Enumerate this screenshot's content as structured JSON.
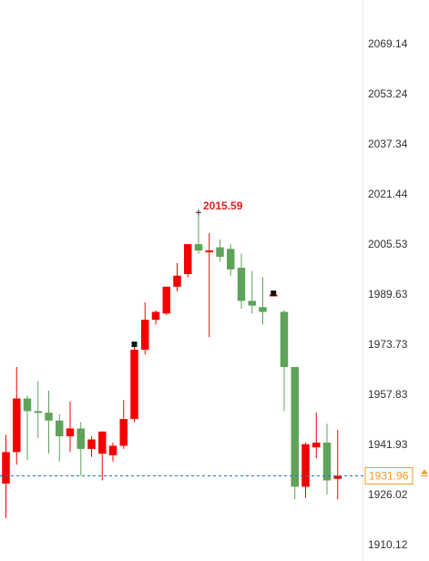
{
  "chart_data": {
    "type": "candlestick",
    "title": "",
    "xlabel": "",
    "ylabel": "",
    "ylim": [
      1907,
      2083
    ],
    "grid": false,
    "y_ticks": [
      "2069.14",
      "2053.24",
      "2037.34",
      "2021.44",
      "2005.53",
      "1989.63",
      "1973.73",
      "1957.83",
      "1941.93",
      "1926.02",
      "1910.12"
    ],
    "y_tick_values": [
      2069.14,
      2053.24,
      2037.34,
      2021.44,
      2005.53,
      1989.63,
      1973.73,
      1957.83,
      1941.93,
      1926.02,
      1910.12
    ],
    "current_price": "1931.96",
    "current_price_value": 1931.96,
    "high_marker": {
      "label": "2015.59",
      "value": 2015.59,
      "candle_index": 18
    },
    "colors": {
      "up": "#f40000",
      "down": "#5fa35a",
      "axis_text": "#333333",
      "high_label": "#e02020",
      "price_line": "#1e73c8",
      "price_tag": "#f29a1f"
    },
    "candles": [
      {
        "open": 1929.5,
        "high": 1945.0,
        "low": 1918.5,
        "close": 1939.5
      },
      {
        "open": 1939.5,
        "high": 1966.5,
        "low": 1935.5,
        "close": 1956.5
      },
      {
        "open": 1956.5,
        "high": 1957.5,
        "low": 1937.0,
        "close": 1952.5
      },
      {
        "open": 1952.5,
        "high": 1962.0,
        "low": 1944.0,
        "close": 1952.0
      },
      {
        "open": 1952.0,
        "high": 1959.0,
        "low": 1939.0,
        "close": 1949.5
      },
      {
        "open": 1949.5,
        "high": 1951.5,
        "low": 1936.5,
        "close": 1944.5
      },
      {
        "open": 1944.5,
        "high": 1955.5,
        "low": 1939.5,
        "close": 1947.0
      },
      {
        "open": 1947.0,
        "high": 1949.0,
        "low": 1932.0,
        "close": 1940.5
      },
      {
        "open": 1940.5,
        "high": 1944.5,
        "low": 1938.0,
        "close": 1943.5
      },
      {
        "open": 1939.0,
        "high": 1946.0,
        "low": 1930.5,
        "close": 1946.0
      },
      {
        "open": 1938.5,
        "high": 1942.5,
        "low": 1936.5,
        "close": 1941.5
      },
      {
        "open": 1941.5,
        "high": 1956.0,
        "low": 1940.5,
        "close": 1950.0
      },
      {
        "open": 1950.0,
        "high": 1973.5,
        "low": 1949.0,
        "close": 1972.0
      },
      {
        "open": 1972.0,
        "high": 1987.0,
        "low": 1970.5,
        "close": 1981.5
      },
      {
        "open": 1981.5,
        "high": 1984.5,
        "low": 1980.0,
        "close": 1984.0
      },
      {
        "open": 1983.5,
        "high": 1992.0,
        "low": 1983.0,
        "close": 1992.0
      },
      {
        "open": 1992.0,
        "high": 1999.5,
        "low": 1990.5,
        "close": 1995.5
      },
      {
        "open": 1996.0,
        "high": 2005.5,
        "low": 1995.0,
        "close": 2005.5
      },
      {
        "open": 2005.5,
        "high": 2015.59,
        "low": 2002.5,
        "close": 2003.5
      },
      {
        "open": 2003.0,
        "high": 2009.0,
        "low": 1976.0,
        "close": 2003.5
      },
      {
        "open": 2004.5,
        "high": 2007.0,
        "low": 2000.0,
        "close": 2001.5
      },
      {
        "open": 2004.0,
        "high": 2005.5,
        "low": 1995.5,
        "close": 1997.5
      },
      {
        "open": 1998.0,
        "high": 2002.5,
        "low": 1985.0,
        "close": 1987.5
      },
      {
        "open": 1987.5,
        "high": 1997.0,
        "low": 1983.5,
        "close": 1986.0
      },
      {
        "open": 1985.5,
        "high": 1995.0,
        "low": 1980.0,
        "close": 1984.0
      },
      {
        "open": 1989.5,
        "high": 1990.5,
        "low": 1989.0,
        "close": 1989.5
      },
      {
        "open": 1984.0,
        "high": 1984.5,
        "low": 1952.5,
        "close": 1966.5
      },
      {
        "open": 1966.5,
        "high": 1966.5,
        "low": 1924.5,
        "close": 1928.5
      },
      {
        "open": 1928.5,
        "high": 1942.5,
        "low": 1925.0,
        "close": 1942.0
      },
      {
        "open": 1941.0,
        "high": 1952.0,
        "low": 1937.5,
        "close": 1942.5
      },
      {
        "open": 1942.5,
        "high": 1948.5,
        "low": 1926.0,
        "close": 1930.5
      },
      {
        "open": 1931.0,
        "high": 1946.5,
        "low": 1924.5,
        "close": 1932.0
      }
    ]
  }
}
